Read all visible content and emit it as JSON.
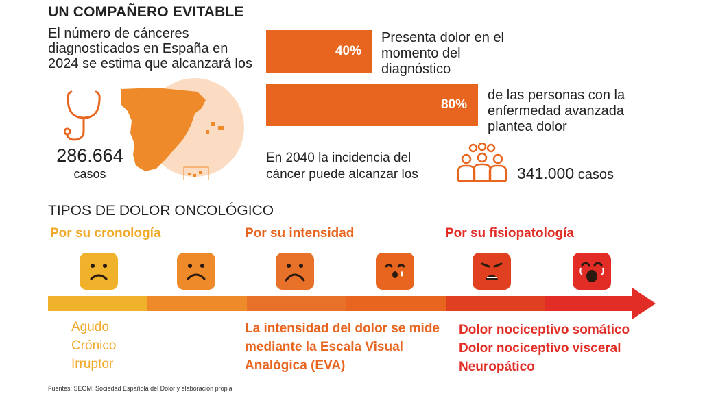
{
  "title": "UN COMPAÑERO EVITABLE",
  "intro": "El número de cánceres diagnosticados en España en 2024 se estima que alcanzará los",
  "cases": {
    "number": "286.664",
    "label": "casos"
  },
  "bars": [
    {
      "value": "40%",
      "text": "Presenta dolor en el momento del diagnóstico"
    },
    {
      "value": "80%",
      "text": "de las personas con la enfermedad avanzada plantea dolor"
    }
  ],
  "incidence": {
    "text": "En 2040 la incidencia del cáncer puede alcanzar los",
    "number": "341.000",
    "unit": "casos"
  },
  "section_title": "TIPOS DE DOLOR ONCOLÓGICO",
  "categories": [
    {
      "title": "Por su cronología",
      "items": [
        "Agudo",
        "Crónico",
        "Irruptor"
      ]
    },
    {
      "title": "Por su intensidad",
      "items": [
        "La intensidad del dolor se mide mediante la Escala Visual Analógica (EVA)"
      ]
    },
    {
      "title": "Por su fisiopatología",
      "items": [
        "Dolor nociceptivo somático",
        "Dolor nociceptivo visceral",
        "Neuropático"
      ]
    }
  ],
  "faces": [
    {
      "name": "mild-sad",
      "color": "#f0b22a"
    },
    {
      "name": "sad",
      "color": "#ef8a2a"
    },
    {
      "name": "sad-stronger",
      "color": "#e8712a"
    },
    {
      "name": "crying",
      "color": "#e8651f"
    },
    {
      "name": "distressed",
      "color": "#e0401f"
    },
    {
      "name": "screaming",
      "color": "#e22d27"
    }
  ],
  "scale_colors": [
    "#f0b22a",
    "#ef8a2a",
    "#e8712a",
    "#e8651f",
    "#e0401f",
    "#e22d27"
  ],
  "source": "Fuentes: SEOM, Sociedad Española del Dolor y elaboración propia"
}
